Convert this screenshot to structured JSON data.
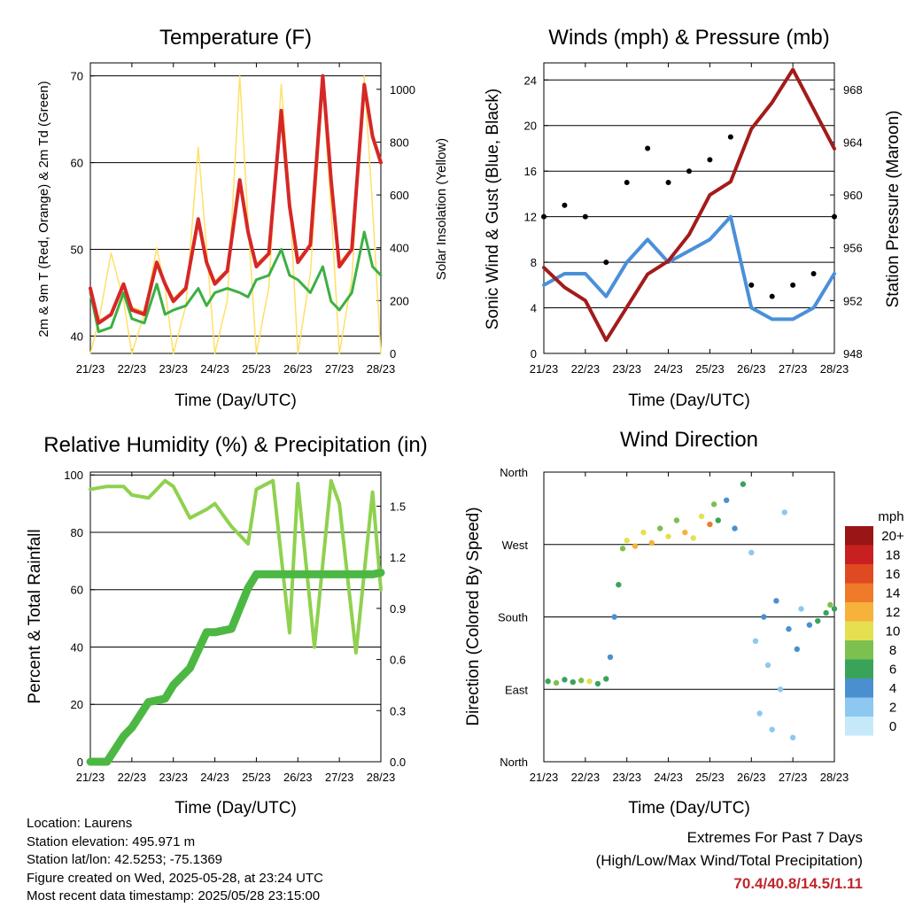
{
  "x_ticks": [
    "21/23",
    "22/23",
    "23/23",
    "24/23",
    "25/23",
    "26/23",
    "27/23",
    "28/23"
  ],
  "panels": {
    "temperature": {
      "title": "Temperature (F)",
      "xlabel": "Time (Day/UTC)",
      "ylabel_left": "2m & 9m T (Red, Orange) & 2m Td (Green)",
      "ylabel_right": "Solar Insolation (Yellow)",
      "left_ticks": [
        "40",
        "50",
        "60",
        "70"
      ],
      "right_ticks": [
        "0",
        "200",
        "400",
        "600",
        "800",
        "1000"
      ]
    },
    "winds": {
      "title": "Winds (mph) & Pressure (mb)",
      "xlabel": "Time (Day/UTC)",
      "ylabel_left": "Sonic Wind & Gust (Blue, Black)",
      "ylabel_right": "Station Pressure (Maroon)",
      "left_ticks": [
        "0",
        "4",
        "8",
        "12",
        "16",
        "20",
        "24"
      ],
      "right_ticks": [
        "948",
        "952",
        "956",
        "960",
        "964",
        "968"
      ]
    },
    "humidity": {
      "title": "Relative Humidity (%) & Precipitation (in)",
      "xlabel": "Time (Day/UTC)",
      "ylabel_left": "Percent & Total Rainfall",
      "left_ticks": [
        "0",
        "20",
        "40",
        "60",
        "80",
        "100"
      ],
      "right_ticks": [
        "0.0",
        "0.3",
        "0.6",
        "0.9",
        "1.2",
        "1.5"
      ]
    },
    "direction": {
      "title": "Wind Direction",
      "xlabel": "Time (Day/UTC)",
      "ylabel_left": "Direction (Colored By Speed)",
      "dir_ticks": [
        "North",
        "East",
        "South",
        "West",
        "North"
      ],
      "legend_title": "mph",
      "legend_labels": [
        "20+",
        "18",
        "16",
        "14",
        "12",
        "10",
        "8",
        "6",
        "4",
        "2",
        "0"
      ]
    }
  },
  "info": {
    "location": "Location: Laurens",
    "elevation": "Station elevation: 495.971 m",
    "latlon": "Station lat/lon: 42.5253; -75.1369",
    "created": "Figure created on Wed, 2025-05-28, at 23:24 UTC",
    "recent": "Most recent data timestamp: 2025/05/28 23:15:00"
  },
  "extremes": {
    "title": "Extremes For Past 7 Days",
    "subtitle": "(High/Low/Max Wind/Total Precipitation)",
    "values": "70.4/40.8/14.5/1.11"
  },
  "colors": {
    "temp_red": "#d62728",
    "temp_orange": "#f5a623",
    "dewpoint": "#3cb043",
    "solar": "#ffe066",
    "wind": "#4a90d9",
    "gust": "#000000",
    "pressure": "#a31b1b",
    "rh": "#8fd14f",
    "precip": "#4cb843",
    "speed_scale": [
      "#c6e9fa",
      "#8cc8ef",
      "#4a90d0",
      "#3aa35a",
      "#7cc04f",
      "#e4e050",
      "#f7b23b",
      "#ef7a2a",
      "#e04a22",
      "#c82020",
      "#9a1515"
    ]
  },
  "chart_data": [
    {
      "type": "line",
      "panel": "temperature",
      "title": "Temperature (F)",
      "xlabel": "Time (Day/UTC)",
      "ylabel": "2m & 9m T (Red, Orange) & 2m Td (Green)",
      "y2label": "Solar Insolation (Yellow)",
      "ylim": [
        38,
        71.5
      ],
      "y2lim": [
        0,
        1100
      ],
      "x": [
        0,
        0.2,
        0.5,
        0.8,
        1.0,
        1.3,
        1.6,
        1.8,
        2.0,
        2.3,
        2.6,
        2.8,
        3.0,
        3.3,
        3.6,
        3.8,
        4.0,
        4.3,
        4.6,
        4.8,
        5.0,
        5.3,
        5.6,
        5.8,
        6.0,
        6.3,
        6.6,
        6.8,
        7.0
      ],
      "series": [
        {
          "name": "2m T",
          "values": [
            45.5,
            41.5,
            42.5,
            46.0,
            43.0,
            42.5,
            48.5,
            46.0,
            44.0,
            45.5,
            53.5,
            48.5,
            46.0,
            47.5,
            58.0,
            52.0,
            48.0,
            49.5,
            66.0,
            55.0,
            48.5,
            50.5,
            70.0,
            58.0,
            48.0,
            50.0,
            69.0,
            63.0,
            60.0
          ]
        },
        {
          "name": "9m T",
          "values": [
            45.3,
            41.7,
            42.4,
            45.8,
            43.2,
            42.7,
            48.3,
            46.1,
            44.2,
            45.6,
            53.3,
            48.6,
            46.2,
            47.6,
            57.8,
            52.1,
            48.2,
            49.6,
            65.8,
            55.2,
            48.7,
            50.6,
            69.8,
            58.2,
            48.3,
            50.1,
            68.8,
            63.2,
            60.2
          ]
        },
        {
          "name": "2m Td",
          "values": [
            45.0,
            40.5,
            41.0,
            45.0,
            42.0,
            41.5,
            46.0,
            42.5,
            43.0,
            43.5,
            45.5,
            43.5,
            45.0,
            45.5,
            45.0,
            44.5,
            46.5,
            47.0,
            50.0,
            47.0,
            46.5,
            45.0,
            48.0,
            44.0,
            43.0,
            45.0,
            52.0,
            48.0,
            47.0
          ]
        },
        {
          "name": "Solar",
          "axis": "y2",
          "values": [
            0,
            120,
            380,
            200,
            0,
            150,
            400,
            250,
            0,
            180,
            780,
            400,
            0,
            200,
            1050,
            500,
            0,
            250,
            1020,
            600,
            0,
            300,
            1000,
            550,
            0,
            280,
            1050,
            550,
            0
          ]
        }
      ]
    },
    {
      "type": "line",
      "panel": "winds",
      "title": "Winds (mph) & Pressure (mb)",
      "xlabel": "Time (Day/UTC)",
      "ylabel": "Sonic Wind & Gust (Blue, Black)",
      "y2label": "Station Pressure (Maroon)",
      "ylim": [
        0,
        25.5
      ],
      "y2lim": [
        948,
        970
      ],
      "x": [
        0,
        0.5,
        1.0,
        1.5,
        2.0,
        2.5,
        3.0,
        3.5,
        4.0,
        4.5,
        5.0,
        5.5,
        6.0,
        6.5,
        7.0
      ],
      "series": [
        {
          "name": "Sonic Wind",
          "values": [
            6,
            7,
            7,
            5,
            8,
            10,
            8,
            9,
            10,
            12,
            4,
            3,
            3,
            4,
            7
          ]
        },
        {
          "name": "Gust",
          "values": [
            12,
            13,
            12,
            8,
            15,
            18,
            15,
            16,
            17,
            19,
            6,
            5,
            6,
            7,
            12
          ]
        },
        {
          "name": "Station Pressure",
          "axis": "y2",
          "values": [
            954.5,
            953.0,
            952.0,
            949.0,
            951.5,
            954.0,
            955.0,
            957.0,
            960.0,
            961.0,
            965.0,
            967.0,
            969.5,
            966.5,
            963.5
          ]
        }
      ]
    },
    {
      "type": "line",
      "panel": "humidity",
      "title": "Relative Humidity (%) & Precipitation (in)",
      "xlabel": "Time (Day/UTC)",
      "ylabel": "Percent & Total Rainfall",
      "ylim": [
        0,
        101
      ],
      "y2lim": [
        0,
        1.7
      ],
      "x": [
        0,
        0.4,
        0.8,
        1.0,
        1.4,
        1.8,
        2.0,
        2.4,
        2.8,
        3.0,
        3.4,
        3.8,
        4.0,
        4.4,
        4.8,
        5.0,
        5.4,
        5.8,
        6.0,
        6.4,
        6.8,
        7.0
      ],
      "series": [
        {
          "name": "Relative Humidity",
          "values": [
            95,
            96,
            96,
            93,
            92,
            98,
            96,
            85,
            88,
            90,
            82,
            76,
            95,
            98,
            45,
            97,
            40,
            98,
            90,
            38,
            94,
            60
          ]
        },
        {
          "name": "Total Precipitation",
          "axis": "y2",
          "values": [
            0.0,
            0.0,
            0.15,
            0.2,
            0.35,
            0.37,
            0.45,
            0.55,
            0.76,
            0.76,
            0.78,
            1.02,
            1.1,
            1.1,
            1.1,
            1.1,
            1.1,
            1.1,
            1.1,
            1.1,
            1.1,
            1.11
          ]
        }
      ]
    },
    {
      "type": "scatter",
      "panel": "direction",
      "title": "Wind Direction",
      "xlabel": "Time (Day/UTC)",
      "ylabel": "Direction (Colored By Speed)",
      "ylim": [
        0,
        360
      ],
      "points": [
        {
          "x": 0.1,
          "y": 100,
          "speed": 6
        },
        {
          "x": 0.3,
          "y": 98,
          "speed": 8
        },
        {
          "x": 0.5,
          "y": 102,
          "speed": 6
        },
        {
          "x": 0.7,
          "y": 99,
          "speed": 5
        },
        {
          "x": 0.9,
          "y": 101,
          "speed": 7
        },
        {
          "x": 1.1,
          "y": 100,
          "speed": 9
        },
        {
          "x": 1.3,
          "y": 97,
          "speed": 6
        },
        {
          "x": 1.5,
          "y": 103,
          "speed": 5
        },
        {
          "x": 1.6,
          "y": 130,
          "speed": 4
        },
        {
          "x": 1.7,
          "y": 180,
          "speed": 4
        },
        {
          "x": 1.8,
          "y": 220,
          "speed": 5
        },
        {
          "x": 1.9,
          "y": 265,
          "speed": 8
        },
        {
          "x": 2.0,
          "y": 275,
          "speed": 10
        },
        {
          "x": 2.2,
          "y": 268,
          "speed": 12
        },
        {
          "x": 2.4,
          "y": 285,
          "speed": 9
        },
        {
          "x": 2.6,
          "y": 272,
          "speed": 11
        },
        {
          "x": 2.8,
          "y": 290,
          "speed": 7
        },
        {
          "x": 3.0,
          "y": 280,
          "speed": 10
        },
        {
          "x": 3.2,
          "y": 300,
          "speed": 8
        },
        {
          "x": 3.4,
          "y": 285,
          "speed": 12
        },
        {
          "x": 3.6,
          "y": 278,
          "speed": 9
        },
        {
          "x": 3.8,
          "y": 305,
          "speed": 10
        },
        {
          "x": 4.0,
          "y": 295,
          "speed": 13
        },
        {
          "x": 4.1,
          "y": 320,
          "speed": 7
        },
        {
          "x": 4.2,
          "y": 300,
          "speed": 5
        },
        {
          "x": 4.4,
          "y": 325,
          "speed": 4
        },
        {
          "x": 4.6,
          "y": 290,
          "speed": 3
        },
        {
          "x": 4.8,
          "y": 345,
          "speed": 6
        },
        {
          "x": 5.0,
          "y": 260,
          "speed": 2
        },
        {
          "x": 5.1,
          "y": 150,
          "speed": 2
        },
        {
          "x": 5.2,
          "y": 60,
          "speed": 1
        },
        {
          "x": 5.3,
          "y": 180,
          "speed": 3
        },
        {
          "x": 5.4,
          "y": 120,
          "speed": 2
        },
        {
          "x": 5.5,
          "y": 40,
          "speed": 1
        },
        {
          "x": 5.6,
          "y": 200,
          "speed": 4
        },
        {
          "x": 5.7,
          "y": 90,
          "speed": 2
        },
        {
          "x": 5.8,
          "y": 310,
          "speed": 1
        },
        {
          "x": 5.9,
          "y": 165,
          "speed": 3
        },
        {
          "x": 6.0,
          "y": 30,
          "speed": 2
        },
        {
          "x": 6.1,
          "y": 140,
          "speed": 3
        },
        {
          "x": 6.2,
          "y": 190,
          "speed": 2
        },
        {
          "x": 6.4,
          "y": 170,
          "speed": 4
        },
        {
          "x": 6.6,
          "y": 175,
          "speed": 5
        },
        {
          "x": 6.8,
          "y": 185,
          "speed": 6
        },
        {
          "x": 6.9,
          "y": 195,
          "speed": 7
        },
        {
          "x": 7.0,
          "y": 190,
          "speed": 6
        }
      ]
    }
  ]
}
